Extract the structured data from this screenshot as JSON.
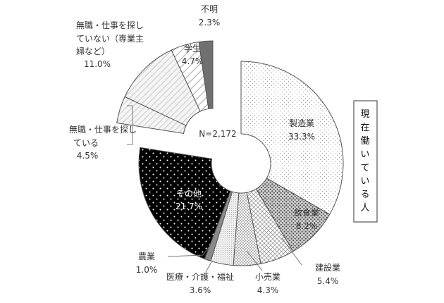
{
  "chart_data": {
    "type": "pie",
    "total_label": "N=2,172",
    "group_label": "現在働いている人",
    "slices": [
      {
        "key": "manufacturing",
        "label": "製造業",
        "value": 33.3,
        "pct": "33.3%",
        "pattern": "dots-light",
        "exploded": true
      },
      {
        "key": "food",
        "label": "飲食業",
        "value": 8.2,
        "pct": "8.2%",
        "pattern": "dots-dark",
        "exploded": true
      },
      {
        "key": "construction",
        "label": "建設業",
        "value": 5.4,
        "pct": "5.4%",
        "pattern": "cross",
        "exploded": true
      },
      {
        "key": "retail",
        "label": "小売業",
        "value": 4.3,
        "pct": "4.3%",
        "pattern": "checker",
        "exploded": true
      },
      {
        "key": "medical",
        "label": "医療・介護・福祉",
        "value": 3.6,
        "pct": "3.6%",
        "pattern": "dots-fine",
        "exploded": true
      },
      {
        "key": "agriculture",
        "label": "農業",
        "value": 1.0,
        "pct": "1.0%",
        "pattern": "solid-gray",
        "exploded": true
      },
      {
        "key": "other",
        "label": "その他",
        "value": 21.7,
        "pct": "21.7%",
        "pattern": "black-dots",
        "exploded": true
      },
      {
        "key": "seeking",
        "label": "無職・仕事を探している",
        "value": 4.5,
        "pct": "4.5%",
        "pattern": "diag-light",
        "exploded": false
      },
      {
        "key": "not_seeking",
        "label": "無職・仕事を探していない（専業主婦など）",
        "value": 11.0,
        "pct": "11.0%",
        "pattern": "diag-light",
        "exploded": false
      },
      {
        "key": "student",
        "label": "学生",
        "value": 4.7,
        "pct": "4.7%",
        "pattern": "diag-wide",
        "exploded": false
      },
      {
        "key": "unknown",
        "label": "不明",
        "value": 2.3,
        "pct": "2.3%",
        "pattern": "dark",
        "exploded": false
      }
    ]
  },
  "labels": {
    "manufacturing_name": "製造業",
    "manufacturing_pct": "33.3%",
    "food_name": "飲食業",
    "food_pct": "8.2%",
    "construction_name": "建設業",
    "construction_pct": "5.4%",
    "retail_name": "小売業",
    "retail_pct": "4.3%",
    "medical_name": "医療・介護・福祉",
    "medical_pct": "3.6%",
    "agriculture_name": "農業",
    "agriculture_pct": "1.0%",
    "other_name": "その他",
    "other_pct": "21.7%",
    "seeking_line1": "無職・仕事を探し",
    "seeking_line2": "ている",
    "seeking_pct": "4.5%",
    "not_seeking_line1": "無職・仕事を探し",
    "not_seeking_line2": "ていない（専業主",
    "not_seeking_line3": "婦など）",
    "not_seeking_pct": "11.0%",
    "student_name": "学生",
    "student_pct": "4.7%",
    "unknown_name": "不明",
    "unknown_pct": "2.3%",
    "total": "N=2,172",
    "group_chars": [
      "現",
      "在",
      "働",
      "い",
      "て",
      "い",
      "る",
      "人"
    ]
  },
  "colors": {
    "stroke": "#555555",
    "dark_slice": "#707070",
    "other_fill": "#000000",
    "agriculture_fill": "#8a8a8a"
  }
}
